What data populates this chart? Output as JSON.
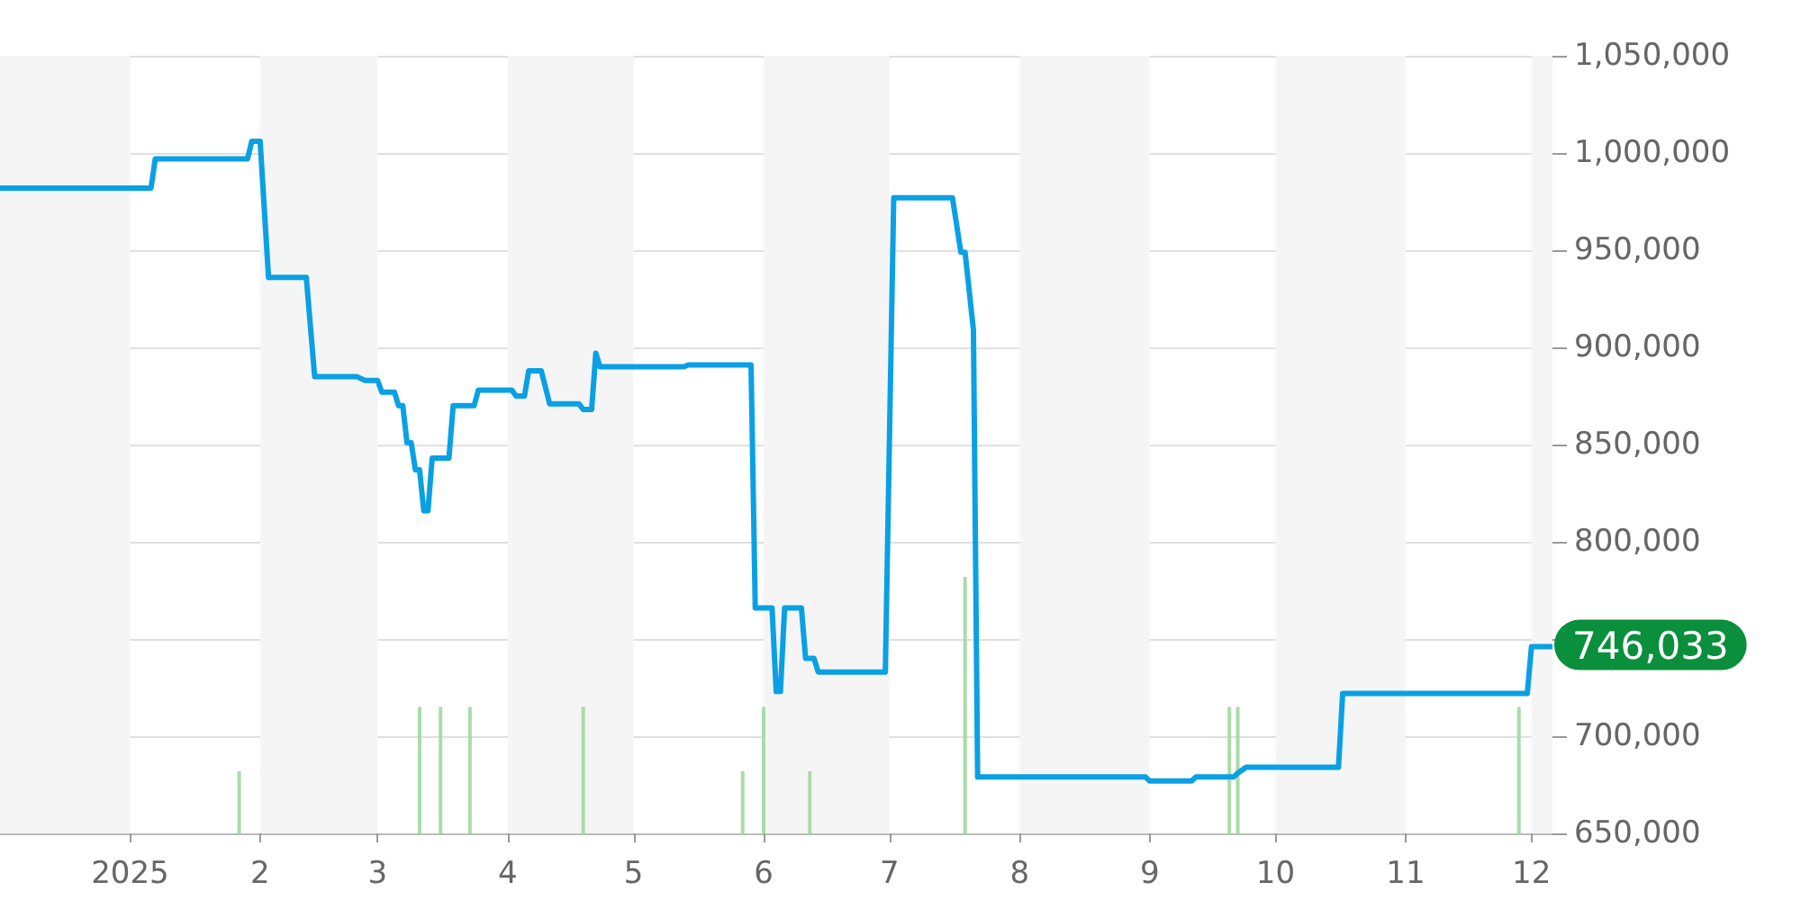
{
  "chart_data": {
    "type": "line",
    "marker": "none",
    "grid": "y",
    "xlim": [
      "2024-12-01",
      "2025-12-06"
    ],
    "xticks": [
      {
        "value": "2025-01-01",
        "label": "2025"
      },
      {
        "value": "2025-02-01",
        "label": "2"
      },
      {
        "value": "2025-03-01",
        "label": "3"
      },
      {
        "value": "2025-04-01",
        "label": "4"
      },
      {
        "value": "2025-05-01",
        "label": "5"
      },
      {
        "value": "2025-06-01",
        "label": "6"
      },
      {
        "value": "2025-07-01",
        "label": "7"
      },
      {
        "value": "2025-08-01",
        "label": "8"
      },
      {
        "value": "2025-09-01",
        "label": "9"
      },
      {
        "value": "2025-10-01",
        "label": "10"
      },
      {
        "value": "2025-11-01",
        "label": "11"
      },
      {
        "value": "2025-12-01",
        "label": "12"
      }
    ],
    "ylim": [
      650000,
      1050000
    ],
    "yticks": [
      {
        "value": 650000,
        "label": "650,000"
      },
      {
        "value": 700000,
        "label": "700,000"
      },
      {
        "value": 750000,
        "label": null
      },
      {
        "value": 800000,
        "label": "800,000"
      },
      {
        "value": 850000,
        "label": "850,000"
      },
      {
        "value": 900000,
        "label": "900,000"
      },
      {
        "value": 950000,
        "label": "950,000"
      },
      {
        "value": 1000000,
        "label": "1,000,000"
      },
      {
        "value": 1050000,
        "label": "1,050,000"
      }
    ],
    "bands": [
      {
        "axis": "x",
        "from": "2024-12-01",
        "to": "2025-01-01",
        "color": "#f5f5f5"
      },
      {
        "axis": "x",
        "from": "2025-02-01",
        "to": "2025-03-01",
        "color": "#f5f5f5"
      },
      {
        "axis": "x",
        "from": "2025-04-01",
        "to": "2025-05-01",
        "color": "#f5f5f5"
      },
      {
        "axis": "x",
        "from": "2025-06-01",
        "to": "2025-07-01",
        "color": "#f5f5f5"
      },
      {
        "axis": "x",
        "from": "2025-08-01",
        "to": "2025-09-01",
        "color": "#f5f5f5"
      },
      {
        "axis": "x",
        "from": "2025-10-01",
        "to": "2025-11-01",
        "color": "#f5f5f5"
      },
      {
        "axis": "x",
        "from": "2025-12-01",
        "to": "2025-12-06",
        "color": "#f5f5f5"
      }
    ],
    "annotations": [
      "746,033"
    ],
    "series": [
      {
        "type": "bar",
        "color": "#a8dca8",
        "x": [
          "2025-01-27",
          "2025-03-11",
          "2025-03-16",
          "2025-03-23",
          "2025-04-19",
          "2025-05-27",
          "2025-06-01",
          "2025-06-12",
          "2025-07-19",
          "2025-09-20",
          "2025-09-22",
          "2025-11-28"
        ],
        "base": [
          650000,
          650000,
          650000,
          650000,
          650000,
          650000,
          650000,
          650000,
          650000,
          650000,
          650000,
          650000
        ],
        "values": [
          32000,
          65000,
          65000,
          65000,
          65000,
          32000,
          65000,
          32000,
          132000,
          65000,
          65000,
          65000
        ]
      },
      {
        "color": "#0aa0e4",
        "line_style": "solid",
        "x": [
          "2024-12-01",
          "2025-01-06",
          "2025-01-07",
          "2025-01-29",
          "2025-01-30",
          "2025-02-01",
          "2025-02-03",
          "2025-02-12",
          "2025-02-14",
          "2025-02-24",
          "2025-02-26",
          "2025-03-01",
          "2025-03-02",
          "2025-03-05",
          "2025-03-06",
          "2025-03-07",
          "2025-03-08",
          "2025-03-09",
          "2025-03-10",
          "2025-03-11",
          "2025-03-12",
          "2025-03-13",
          "2025-03-14",
          "2025-03-18",
          "2025-03-19",
          "2025-03-24",
          "2025-03-25",
          "2025-04-02",
          "2025-04-03",
          "2025-04-05",
          "2025-04-06",
          "2025-04-09",
          "2025-04-11",
          "2025-04-18",
          "2025-04-19",
          "2025-04-21",
          "2025-04-22",
          "2025-04-23",
          "2025-05-13",
          "2025-05-14",
          "2025-05-29",
          "2025-05-30",
          "2025-06-03",
          "2025-06-04",
          "2025-06-05",
          "2025-06-06",
          "2025-06-10",
          "2025-06-11",
          "2025-06-13",
          "2025-06-14",
          "2025-06-30",
          "2025-07-02",
          "2025-07-16",
          "2025-07-18",
          "2025-07-19",
          "2025-07-21",
          "2025-07-22",
          "2025-08-31",
          "2025-09-01",
          "2025-09-11",
          "2025-09-12",
          "2025-09-21",
          "2025-09-22",
          "2025-09-24",
          "2025-10-16",
          "2025-10-17",
          "2025-11-30",
          "2025-12-01",
          "2025-12-06"
        ],
        "values": [
          982000,
          982000,
          997000,
          997000,
          1006000,
          1006000,
          936000,
          936000,
          885000,
          885000,
          883000,
          883000,
          877000,
          877000,
          870000,
          870000,
          851000,
          851000,
          837000,
          837000,
          816000,
          816000,
          843000,
          843000,
          870000,
          870000,
          878000,
          878000,
          875000,
          875000,
          888000,
          888000,
          871000,
          871000,
          868000,
          868000,
          897000,
          890000,
          890000,
          891000,
          891000,
          766000,
          766000,
          723000,
          723000,
          766000,
          766000,
          740000,
          740000,
          733000,
          733000,
          977000,
          977000,
          949000,
          949000,
          909000,
          679000,
          679000,
          677000,
          677000,
          679000,
          679000,
          681000,
          684000,
          684000,
          722000,
          722000,
          746033,
          746033
        ]
      }
    ]
  }
}
